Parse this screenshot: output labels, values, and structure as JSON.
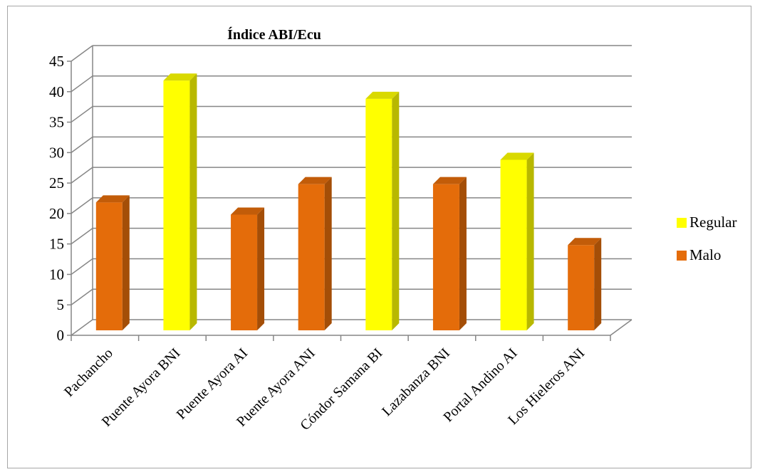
{
  "chart_data": {
    "type": "bar",
    "title": "Índice  ABI/Ecu",
    "xlabel": "",
    "ylabel": "",
    "categories": [
      "Pachancho",
      "Puente Ayora BNI",
      "Puente Ayora AI",
      "Puente Ayora ANI",
      "Cóndor Samana BI",
      "Lazabanza BNI",
      "Portal Andino AI",
      "Los Hieleros ANI"
    ],
    "values": [
      21,
      41,
      19,
      24,
      38,
      24,
      28,
      14
    ],
    "classes": [
      "Malo",
      "Regular",
      "Malo",
      "Malo",
      "Regular",
      "Malo",
      "Regular",
      "Malo"
    ],
    "ylim": [
      0,
      45
    ],
    "yticks": [
      "0",
      "5",
      "10",
      "15",
      "20",
      "25",
      "30",
      "35",
      "40",
      "45"
    ],
    "grid": true,
    "legend_position": "right",
    "legend": [
      {
        "name": "Regular",
        "color": "#ffff00"
      },
      {
        "name": "Malo",
        "color": "#e46c0a"
      }
    ]
  }
}
